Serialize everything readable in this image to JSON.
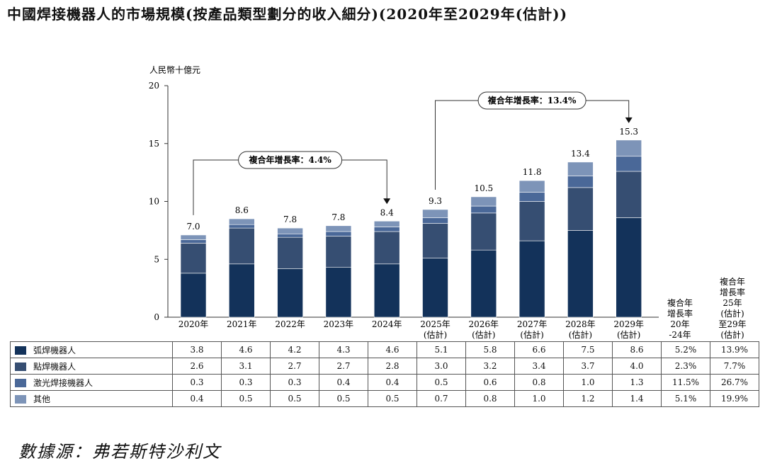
{
  "title": "中國焊接機器人的市場規模(按產品類型劃分的收入細分)(2020年至2029年(估計))",
  "source": "數據源：弗若斯特沙利文",
  "chart_data": {
    "type": "bar",
    "stacked": true,
    "y_unit": "人民幣十億元",
    "ylim": [
      0,
      20
    ],
    "y_ticks": [
      0,
      5,
      10,
      15,
      20
    ],
    "categories": [
      "2020年",
      "2021年",
      "2022年",
      "2023年",
      "2024年",
      "2025年 (估計)",
      "2026年 (估計)",
      "2027年 (估計)",
      "2028年 (估計)",
      "2029年 (估計)"
    ],
    "category_lines": [
      [
        "2020年"
      ],
      [
        "2021年"
      ],
      [
        "2022年"
      ],
      [
        "2023年"
      ],
      [
        "2024年"
      ],
      [
        "2025年",
        "(估計)"
      ],
      [
        "2026年",
        "(估計)"
      ],
      [
        "2027年",
        "(估計)"
      ],
      [
        "2028年",
        "(估計)"
      ],
      [
        "2029年",
        "(估計)"
      ]
    ],
    "totals": [
      "7.0",
      "8.6",
      "7.8",
      "7.8",
      "8.4",
      "9.3",
      "10.5",
      "11.8",
      "13.4",
      "15.3"
    ],
    "series": [
      {
        "name": "弧焊機器人",
        "color": "#13325a",
        "values": [
          3.8,
          4.6,
          4.2,
          4.3,
          4.6,
          5.1,
          5.8,
          6.6,
          7.5,
          8.6
        ],
        "labels": [
          "3.8",
          "4.6",
          "4.2",
          "4.3",
          "4.6",
          "5.1",
          "5.8",
          "6.6",
          "7.5",
          "8.6"
        ],
        "cagr_20_24": "5.2%",
        "cagr_25_29": "13.9%"
      },
      {
        "name": "點焊機器人",
        "color": "#364e72",
        "values": [
          2.6,
          3.1,
          2.7,
          2.7,
          2.8,
          3.0,
          3.2,
          3.4,
          3.7,
          4.0
        ],
        "labels": [
          "2.6",
          "3.1",
          "2.7",
          "2.7",
          "2.8",
          "3.0",
          "3.2",
          "3.4",
          "3.7",
          "4.0"
        ],
        "cagr_20_24": "2.3%",
        "cagr_25_29": "7.7%"
      },
      {
        "name": "激光焊接機器人",
        "color": "#4a6898",
        "values": [
          0.3,
          0.3,
          0.3,
          0.4,
          0.4,
          0.5,
          0.6,
          0.8,
          1.0,
          1.3
        ],
        "labels": [
          "0.3",
          "0.3",
          "0.3",
          "0.4",
          "0.4",
          "0.5",
          "0.6",
          "0.8",
          "1.0",
          "1.3"
        ],
        "cagr_20_24": "11.5%",
        "cagr_25_29": "26.7%"
      },
      {
        "name": "其他",
        "color": "#7d94b8",
        "values": [
          0.4,
          0.5,
          0.5,
          0.5,
          0.5,
          0.7,
          0.8,
          1.0,
          1.2,
          1.4
        ],
        "labels": [
          "0.4",
          "0.5",
          "0.5",
          "0.5",
          "0.5",
          "0.7",
          "0.8",
          "1.0",
          "1.2",
          "1.4"
        ],
        "cagr_20_24": "5.1%",
        "cagr_25_29": "19.9%"
      }
    ],
    "cagr_columns": [
      {
        "lines": [
          "複合年",
          "增長率",
          "20年",
          "-24年"
        ]
      },
      {
        "lines": [
          "複合年",
          "增長率",
          "25年",
          "(估計)",
          "至29年",
          "(估計)"
        ]
      }
    ],
    "annotations": [
      {
        "text": "複合年增長率：4.4%",
        "from": 0,
        "to": 4
      },
      {
        "text": "複合年增長率：13.4%",
        "from": 5,
        "to": 9
      }
    ]
  }
}
